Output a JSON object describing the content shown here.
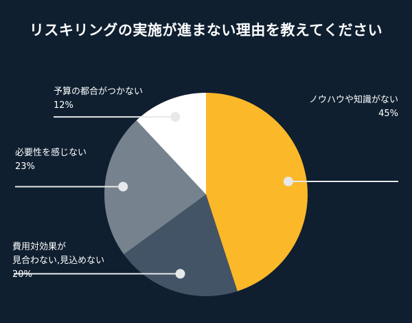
{
  "chart_data": {
    "type": "pie",
    "title": "リスキリングの実施が進まない理由を教えてください",
    "slices": [
      {
        "label": "ノウハウや知識がない",
        "value": 45,
        "value_label": "45%",
        "color": "#fbb829"
      },
      {
        "label": "見合わない,見込めない",
        "value": 20,
        "value_label": "20%",
        "color": "#435466"
      },
      {
        "label": "必要性を感じない",
        "value": 23,
        "value_label": "23%",
        "color": "#76838e"
      },
      {
        "label": "予算の都合がつかない",
        "value": 12,
        "value_label": "12%",
        "color": "#ffffff"
      }
    ],
    "slice2_label_line1": "費用対効果が",
    "legend": "none"
  }
}
